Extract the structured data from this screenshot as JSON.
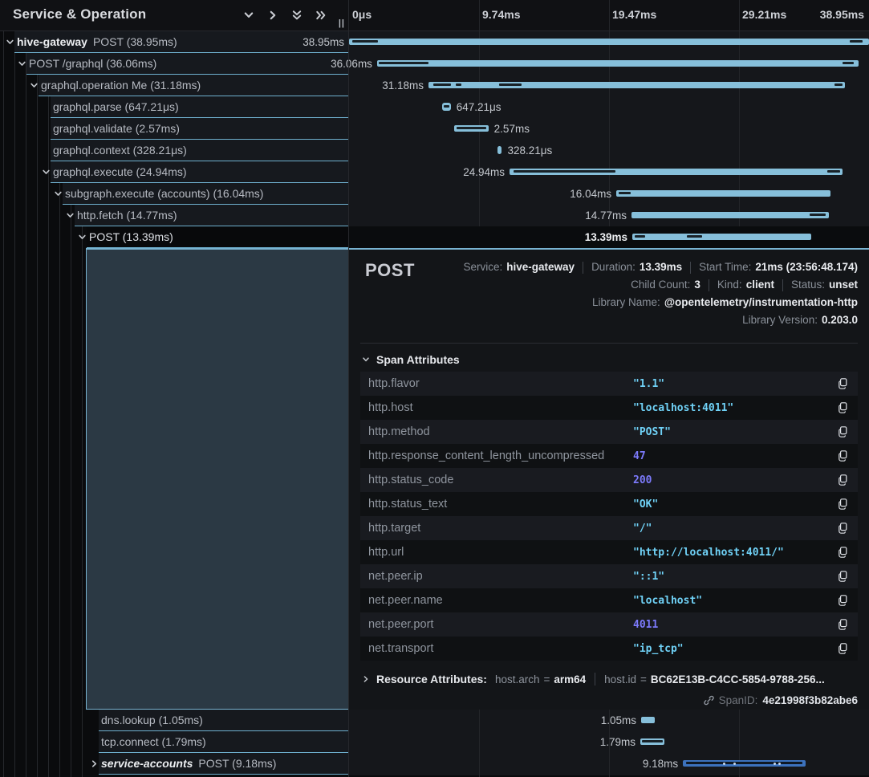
{
  "left_header": {
    "title": "Service & Operation",
    "icons": [
      "chevron-down-icon",
      "chevron-right-icon",
      "double-chevron-down-icon",
      "double-chevron-right-icon"
    ],
    "resize_handle": "||"
  },
  "timeline_ruler": {
    "ticks": [
      "0μs",
      "9.74ms",
      "19.47ms",
      "29.21ms",
      "38.95ms"
    ],
    "total_ms": 38.95
  },
  "colors": {
    "accent_blue": "#79b4d2",
    "bar_light": "#86bfda",
    "bar_alt_blue": "#3c72bd",
    "string_value": "#70d2f7",
    "number_value": "#7c7afb",
    "selected_row_bg": "#08090b",
    "detail_block_bg": "#2b3944"
  },
  "trace_tree": {
    "rows": [
      {
        "service": "hive-gateway",
        "operation": "POST (38.95ms)",
        "level": 0,
        "toggle": "down",
        "selected": false,
        "bar": {
          "start_ms": 0,
          "duration_ms": 38.95,
          "label": "38.95ms",
          "side": "left",
          "marks": [
            [
              4,
              32
            ],
            [
              624,
              16
            ]
          ]
        }
      },
      {
        "service": "",
        "operation": "POST /graphql (36.06ms)",
        "level": 1,
        "toggle": "down",
        "selected": false,
        "bar": {
          "start_ms": 2.1,
          "duration_ms": 36.06,
          "label": "36.06ms",
          "side": "left",
          "marks": [
            [
              2,
              62
            ],
            [
              580,
              14
            ]
          ]
        }
      },
      {
        "service": "",
        "operation": "graphql.operation Me (31.18ms)",
        "level": 2,
        "toggle": "down",
        "selected": false,
        "bar": {
          "start_ms": 5.95,
          "duration_ms": 31.18,
          "label": "31.18ms",
          "side": "left",
          "marks": [
            [
              6,
              22
            ],
            [
              34,
              7
            ],
            [
              88,
              28
            ],
            [
              506,
              10
            ]
          ]
        }
      },
      {
        "service": "",
        "operation": "graphql.parse (647.21μs)",
        "level": 3,
        "toggle": null,
        "selected": false,
        "bar": {
          "start_ms": 6.97,
          "duration_ms": 0.64721,
          "label": "647.21μs",
          "side": "right",
          "marks": [
            [
              2,
              7
            ]
          ]
        }
      },
      {
        "service": "",
        "operation": "graphql.validate (2.57ms)",
        "level": 3,
        "toggle": null,
        "selected": false,
        "bar": {
          "start_ms": 7.87,
          "duration_ms": 2.57,
          "label": "2.57ms",
          "side": "right",
          "marks": [
            [
              3,
              37
            ]
          ]
        }
      },
      {
        "service": "",
        "operation": "graphql.context (328.21μs)",
        "level": 3,
        "toggle": null,
        "selected": false,
        "bar": {
          "start_ms": 11.12,
          "duration_ms": 0.32821,
          "label": "328.21μs",
          "side": "right",
          "marks": []
        }
      },
      {
        "service": "",
        "operation": "graphql.execute (24.94ms)",
        "level": 3,
        "toggle": "down",
        "selected": false,
        "bar": {
          "start_ms": 12.02,
          "duration_ms": 24.94,
          "label": "24.94ms",
          "side": "left",
          "marks": [
            [
              5,
              127
            ],
            [
              396,
              16
            ]
          ]
        }
      },
      {
        "service": "",
        "operation": "subgraph.execute (accounts) (16.04ms)",
        "level": 4,
        "toggle": "down",
        "selected": false,
        "bar": {
          "start_ms": 20.02,
          "duration_ms": 16.04,
          "label": "16.04ms",
          "side": "left",
          "marks": [
            [
              3,
              15
            ]
          ]
        }
      },
      {
        "service": "",
        "operation": "http.fetch (14.77ms)",
        "level": 5,
        "toggle": "down",
        "selected": false,
        "bar": {
          "start_ms": 21.16,
          "duration_ms": 14.77,
          "label": "14.77ms",
          "side": "left",
          "marks": [
            [
              222,
              20
            ]
          ]
        }
      },
      {
        "service": "",
        "operation": "POST (13.39ms)",
        "level": 6,
        "toggle": "down",
        "selected": true,
        "bar": {
          "start_ms": 21.22,
          "duration_ms": 13.39,
          "label": "13.39ms",
          "side": "left",
          "label_bold": true,
          "marks": [
            [
              3,
              13
            ],
            [
              68,
              19
            ]
          ]
        }
      }
    ],
    "bottom_rows": [
      {
        "service": "",
        "operation": "dns.lookup (1.05ms)",
        "level": 7,
        "toggle": null,
        "selected": false,
        "bar": {
          "start_ms": 21.88,
          "duration_ms": 1.05,
          "label": "1.05ms",
          "side": "left",
          "marks": []
        }
      },
      {
        "service": "",
        "operation": "tcp.connect (1.79ms)",
        "level": 7,
        "toggle": null,
        "selected": false,
        "bar": {
          "start_ms": 21.82,
          "duration_ms": 1.79,
          "label": "1.79ms",
          "side": "left",
          "marks": [
            [
              2,
              26
            ]
          ]
        }
      },
      {
        "service": "service-accounts",
        "service_italic": true,
        "operation": "POST (9.18ms)",
        "level": 7,
        "toggle": "right",
        "selected": false,
        "bar": {
          "start_ms": 25.01,
          "duration_ms": 9.18,
          "label": "9.18ms",
          "side": "left",
          "variant": "blue",
          "marks": [
            [
              4,
              145
            ]
          ],
          "dots": [
            50,
            63,
            113,
            119
          ]
        }
      }
    ]
  },
  "span_detail": {
    "title": "POST",
    "meta_lines": [
      [
        {
          "label": "Service:",
          "value": "hive-gateway"
        },
        {
          "label": "Duration:",
          "value": "13.39ms"
        },
        {
          "label": "Start Time:",
          "value": "21ms (23:56:48.174)"
        }
      ],
      [
        {
          "label": "Child Count:",
          "value": "3"
        },
        {
          "label": "Kind:",
          "value": "client"
        },
        {
          "label": "Status:",
          "value": "unset"
        }
      ],
      [
        {
          "label": "Library Name:",
          "value": "@opentelemetry/instrumentation-http"
        }
      ],
      [
        {
          "label": "Library Version:",
          "value": "0.203.0"
        }
      ]
    ],
    "span_attributes": {
      "section_title": "Span Attributes",
      "rows": [
        {
          "key": "http.flavor",
          "value": "\"1.1\"",
          "type": "string"
        },
        {
          "key": "http.host",
          "value": "\"localhost:4011\"",
          "type": "string"
        },
        {
          "key": "http.method",
          "value": "\"POST\"",
          "type": "string"
        },
        {
          "key": "http.response_content_length_uncompressed",
          "value": "47",
          "type": "number"
        },
        {
          "key": "http.status_code",
          "value": "200",
          "type": "number"
        },
        {
          "key": "http.status_text",
          "value": "\"OK\"",
          "type": "string"
        },
        {
          "key": "http.target",
          "value": "\"/\"",
          "type": "string"
        },
        {
          "key": "http.url",
          "value": "\"http://localhost:4011/\"",
          "type": "string"
        },
        {
          "key": "net.peer.ip",
          "value": "\"::1\"",
          "type": "string"
        },
        {
          "key": "net.peer.name",
          "value": "\"localhost\"",
          "type": "string"
        },
        {
          "key": "net.peer.port",
          "value": "4011",
          "type": "number"
        },
        {
          "key": "net.transport",
          "value": "\"ip_tcp\"",
          "type": "string"
        }
      ]
    },
    "resource_attributes": {
      "title": "Resource Attributes:",
      "items": [
        {
          "key": "host.arch",
          "value": "arm64"
        },
        {
          "key": "host.id",
          "value": "BC62E13B-C4CC-5854-9788-256..."
        }
      ]
    },
    "span_id": {
      "label": "SpanID:",
      "value": "4e21998f3b82abe6"
    }
  }
}
